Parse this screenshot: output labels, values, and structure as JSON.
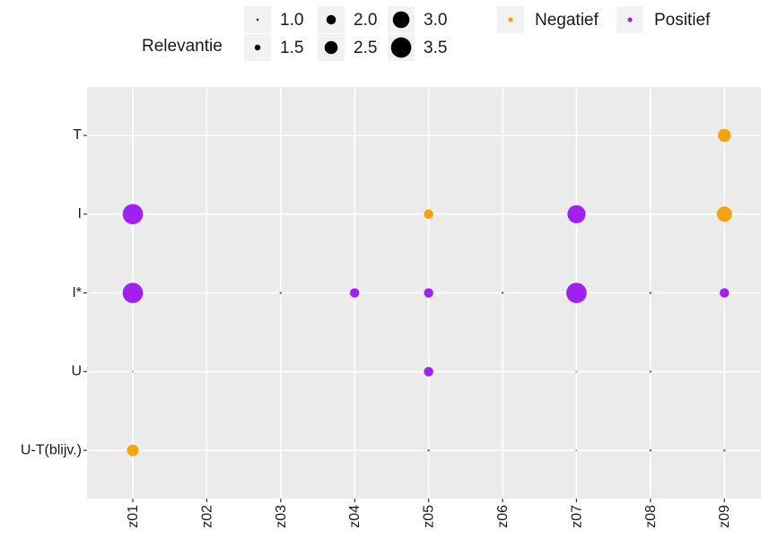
{
  "chart_data": {
    "type": "scatter",
    "title": "",
    "xlabel": "",
    "ylabel": "",
    "x_categories": [
      "z01",
      "z02",
      "z03",
      "z04",
      "z05",
      "z06",
      "z07",
      "z08",
      "z09"
    ],
    "y_categories": [
      "U-T(blijv.)",
      "U",
      "I*",
      "I",
      "T"
    ],
    "size_legend": {
      "title": "Relevantie",
      "values": [
        1.0,
        1.5,
        2.0,
        2.5,
        3.0,
        3.5
      ],
      "labels": [
        "1.0",
        "1.5",
        "2.0",
        "2.5",
        "3.0",
        "3.5"
      ]
    },
    "color_legend": {
      "entries": [
        {
          "name": "Negatief",
          "color": "#F5A30F"
        },
        {
          "name": "Positief",
          "color": "#A020F0"
        }
      ]
    },
    "series": [
      {
        "name": "Negatief",
        "color": "#F5A30F",
        "points": [
          {
            "x": "z09",
            "y": "T",
            "size": 2.5
          },
          {
            "x": "z05",
            "y": "I",
            "size": 2.0
          },
          {
            "x": "z09",
            "y": "I",
            "size": 2.8
          },
          {
            "x": "z01",
            "y": "U",
            "size": 1.0
          },
          {
            "x": "z07",
            "y": "U",
            "size": 1.0
          },
          {
            "x": "z01",
            "y": "U-T(blijv.)",
            "size": 2.3
          },
          {
            "x": "z07",
            "y": "U-T(blijv.)",
            "size": 1.0
          }
        ]
      },
      {
        "name": "Positief",
        "color": "#A020F0",
        "points": [
          {
            "x": "z01",
            "y": "I",
            "size": 3.5
          },
          {
            "x": "z07",
            "y": "I",
            "size": 3.2
          },
          {
            "x": "z01",
            "y": "I*",
            "size": 3.5
          },
          {
            "x": "z03",
            "y": "I*",
            "size": 1.0
          },
          {
            "x": "z04",
            "y": "I*",
            "size": 2.0
          },
          {
            "x": "z05",
            "y": "I*",
            "size": 2.0
          },
          {
            "x": "z06",
            "y": "I*",
            "size": 1.0
          },
          {
            "x": "z07",
            "y": "I*",
            "size": 3.5
          },
          {
            "x": "z08",
            "y": "I*",
            "size": 1.0
          },
          {
            "x": "z09",
            "y": "I*",
            "size": 2.0
          },
          {
            "x": "z05",
            "y": "U",
            "size": 2.0
          },
          {
            "x": "z08",
            "y": "U",
            "size": 1.0
          },
          {
            "x": "z05",
            "y": "U-T(blijv.)",
            "size": 1.0
          },
          {
            "x": "z08",
            "y": "U-T(blijv.)",
            "size": 1.0
          },
          {
            "x": "z09",
            "y": "U-T(blijv.)",
            "size": 1.0
          }
        ]
      }
    ],
    "grid": true,
    "panel_background": "#EBEBEB",
    "legend_position": "top"
  }
}
